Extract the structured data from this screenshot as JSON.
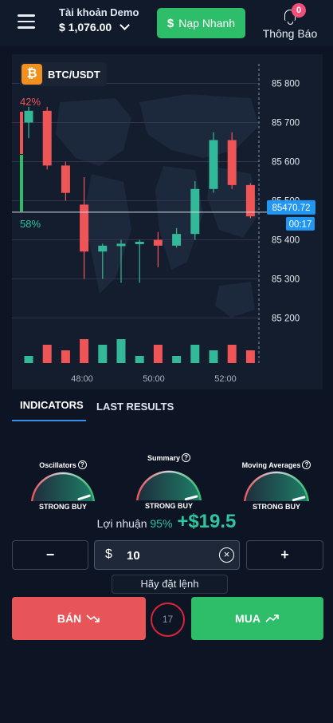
{
  "header": {
    "account_title": "Tài khoản Demo",
    "account_balance": "$ 1,076.00",
    "deposit_label": "Nạp Nhanh",
    "deposit_symbol": "$",
    "notifications_label": "Thông Báo",
    "notifications_count": "0"
  },
  "chart": {
    "pair": "BTC/USDT",
    "coin_symbol": "₿",
    "sell_pct": "42%",
    "buy_pct": "58%",
    "current_price": "85470.72",
    "countdown": "00:17",
    "colors": {
      "up": "#34b89a",
      "down": "#ef5557",
      "price_tag": "#2196f3"
    }
  },
  "chart_data": {
    "type": "candlestick",
    "y_ticks": [
      "85 800",
      "85 700",
      "85 600",
      "85 500",
      "85 400",
      "85 300",
      "85 200"
    ],
    "y_tick_values": [
      85800,
      85700,
      85600,
      85500,
      85400,
      85300,
      85200
    ],
    "ylim": [
      85150,
      85850
    ],
    "x_ticks": [
      "48:00",
      "50:00",
      "52:00"
    ],
    "current_price": 85470.72,
    "candles": [
      {
        "o": 85700,
        "c": 85730,
        "h": 85740,
        "l": 85660,
        "dir": "up",
        "vol": 1
      },
      {
        "o": 85730,
        "c": 85590,
        "h": 85740,
        "l": 85580,
        "dir": "down",
        "vol": 3
      },
      {
        "o": 85590,
        "c": 85520,
        "h": 85600,
        "l": 85500,
        "dir": "down",
        "vol": 2
      },
      {
        "o": 85490,
        "c": 85370,
        "h": 85560,
        "l": 85300,
        "dir": "down",
        "vol": 4
      },
      {
        "o": 85370,
        "c": 85385,
        "h": 85390,
        "l": 85300,
        "dir": "up",
        "vol": 3
      },
      {
        "o": 85385,
        "c": 85390,
        "h": 85400,
        "l": 85290,
        "dir": "up",
        "vol": 4
      },
      {
        "o": 85390,
        "c": 85395,
        "h": 85400,
        "l": 85290,
        "dir": "up",
        "vol": 1
      },
      {
        "o": 85400,
        "c": 85385,
        "h": 85420,
        "l": 85330,
        "dir": "down",
        "vol": 3
      },
      {
        "o": 85385,
        "c": 85415,
        "h": 85430,
        "l": 85380,
        "dir": "up",
        "vol": 1
      },
      {
        "o": 85415,
        "c": 85530,
        "h": 85550,
        "l": 85400,
        "dir": "up",
        "vol": 3
      },
      {
        "o": 85530,
        "c": 85655,
        "h": 85675,
        "l": 85520,
        "dir": "up",
        "vol": 2
      },
      {
        "o": 85655,
        "c": 85540,
        "h": 85675,
        "l": 85530,
        "dir": "down",
        "vol": 3
      },
      {
        "o": 85540,
        "c": 85460,
        "h": 85545,
        "l": 85455,
        "dir": "down",
        "vol": 2
      }
    ]
  },
  "tabs": {
    "indicators": "INDICATORS",
    "last_results": "LAST RESULTS"
  },
  "gauges": [
    {
      "title": "Oscillators",
      "label": "STRONG BUY",
      "level": 0.9
    },
    {
      "title": "Summary",
      "label": "STRONG BUY",
      "level": 0.92
    },
    {
      "title": "Moving Averages",
      "label": "STRONG BUY",
      "level": 0.92
    }
  ],
  "profit": {
    "label": "Lợi nhuận",
    "pct": "95%",
    "amount": "+$19.5"
  },
  "amount": {
    "minus": "−",
    "plus": "+",
    "currency": "$",
    "value": "10",
    "clear": "×"
  },
  "hint": "Hãy đặt lệnh",
  "actions": {
    "sell": "BÁN",
    "buy": "MUA",
    "timer": "17"
  }
}
